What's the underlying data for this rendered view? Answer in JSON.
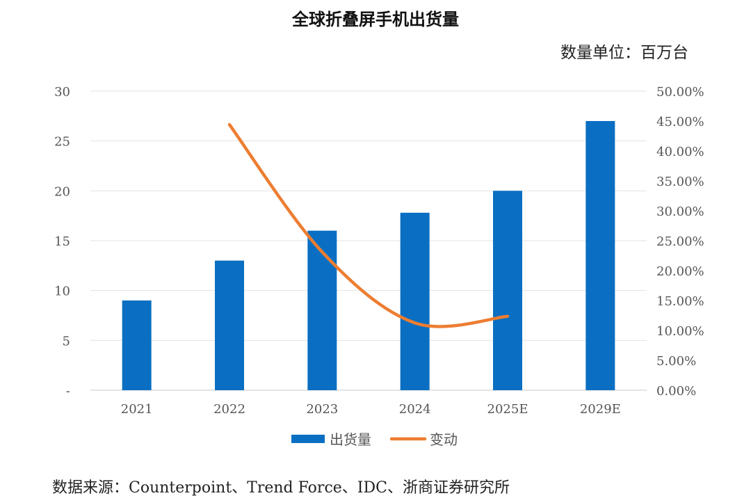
{
  "unit_label": "数量单位：百万台",
  "source_label": "数据来源：Counterpoint、Trend Force、IDC、浙商证券研究所",
  "chart_data": {
    "type": "bar",
    "title": "全球折叠屏手机出货量",
    "categories": [
      "2021",
      "2022",
      "2023",
      "2024",
      "2025E",
      "2029E"
    ],
    "series": [
      {
        "name": "出货量",
        "kind": "bar",
        "axis": "left",
        "color": "#0A6FC2",
        "values": [
          9.0,
          13.0,
          16.0,
          17.8,
          20.0,
          27.0
        ]
      },
      {
        "name": "变动",
        "kind": "line",
        "axis": "right",
        "color": "#ED7D31",
        "values": [
          null,
          0.444,
          0.231,
          0.1125,
          0.1236,
          null
        ]
      }
    ],
    "left_axis": {
      "min": 0,
      "max": 30,
      "ticks": [
        0,
        5,
        10,
        15,
        20,
        25,
        30
      ],
      "tick_labels": [
        "-",
        "5",
        "10",
        "15",
        "20",
        "25",
        "30"
      ]
    },
    "right_axis": {
      "min": 0,
      "max": 0.5,
      "ticks": [
        0,
        0.05,
        0.1,
        0.15,
        0.2,
        0.25,
        0.3,
        0.35,
        0.4,
        0.45,
        0.5
      ],
      "tick_labels": [
        "0.00%",
        "5.00%",
        "10.00%",
        "15.00%",
        "20.00%",
        "25.00%",
        "30.00%",
        "35.00%",
        "40.00%",
        "45.00%",
        "50.00%"
      ]
    },
    "grid": true,
    "legend": "bottom-center"
  }
}
